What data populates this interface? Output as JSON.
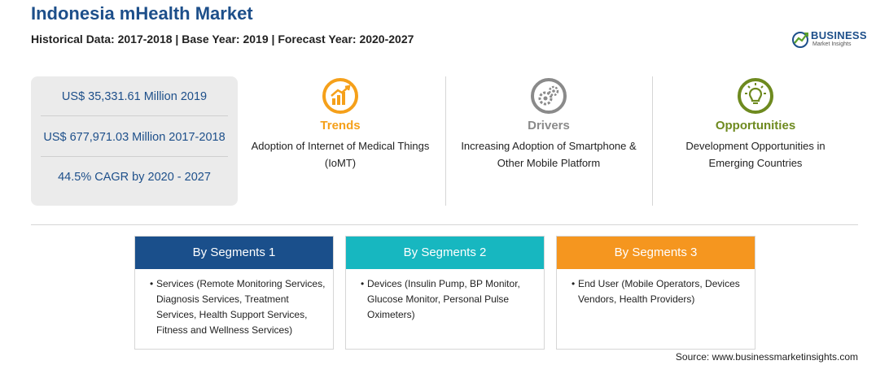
{
  "header": {
    "title": "Indonesia mHealth Market",
    "subtitle": "Historical Data: 2017-2018 | Base Year: 2019 | Forecast Year: 2020-2027"
  },
  "logo": {
    "name": "BUSINESS",
    "tagline": "Market Insights"
  },
  "stats": [
    "US$ 35,331.61 Million 2019",
    "US$ 677,971.03 Million 2017-2018",
    "44.5% CAGR by 2020 - 2027"
  ],
  "columns": {
    "trends": {
      "title": "Trends",
      "desc": "Adoption of Internet of Medical Things (IoMT)",
      "icon": "chart-growth-icon",
      "color": "#f5a01a"
    },
    "drivers": {
      "title": "Drivers",
      "desc": "Increasing Adoption of Smartphone & Other Mobile Platform",
      "icon": "gears-icon",
      "color": "#8a8a8a"
    },
    "opportunities": {
      "title": "Opportunities",
      "desc": "Development Opportunities in Emerging Countries",
      "icon": "lightbulb-icon",
      "color": "#6e8a1f"
    }
  },
  "segments": [
    {
      "title": "By Segments 1",
      "bullet": "•",
      "text": "Services (Remote Monitoring Services, Diagnosis Services, Treatment Services, Health Support Services, Fitness and Wellness Services)"
    },
    {
      "title": "By Segments 2",
      "bullet": "•",
      "text": "Devices (Insulin Pump, BP Monitor, Glucose Monitor, Personal Pulse Oximeters)"
    },
    {
      "title": "By Segments 3",
      "bullet": "•",
      "text": "End User (Mobile Operators, Devices Vendors, Health Providers)"
    }
  ],
  "source": "Source: www.businessmarketinsights.com"
}
